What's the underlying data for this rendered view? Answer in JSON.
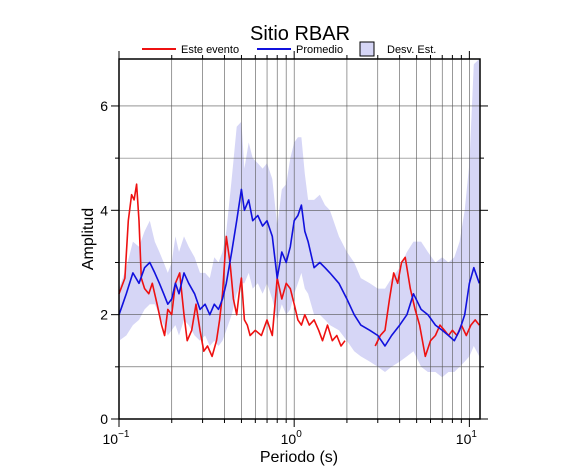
{
  "chart_data": {
    "type": "line",
    "title": "Sitio RBAR",
    "xlabel": "Periodo (s)",
    "ylabel": "Amplitud",
    "x_scale": "log",
    "xlim": [
      0.1,
      11.5
    ],
    "ylim": [
      0,
      6.9
    ],
    "grid": true,
    "legend_position": "top",
    "x_ticks": [
      {
        "value": 0.1,
        "base": "10",
        "exp": "−1"
      },
      {
        "value": 1,
        "base": "10",
        "exp": "0"
      },
      {
        "value": 10,
        "base": "10",
        "exp": "1"
      }
    ],
    "y_ticks": [
      0,
      2,
      4,
      6
    ],
    "legend": [
      {
        "label": "Este evento",
        "kind": "line",
        "color": "#ee1111"
      },
      {
        "label": "Promedio",
        "kind": "line",
        "color": "#1111dd"
      },
      {
        "label": "Desv. Est.",
        "kind": "box",
        "color": "#d6d6f6"
      }
    ],
    "series": [
      {
        "name": "Este evento",
        "color": "#ee1111",
        "x": [
          0.1,
          0.108,
          0.113,
          0.118,
          0.122,
          0.126,
          0.13,
          0.134,
          0.14,
          0.148,
          0.155,
          0.165,
          0.175,
          0.182,
          0.19,
          0.2,
          0.21,
          0.222,
          0.235,
          0.245,
          0.26,
          0.275,
          0.29,
          0.305,
          0.32,
          0.34,
          0.36,
          0.375,
          0.39,
          0.41,
          0.43,
          0.45,
          0.47,
          0.485,
          0.5,
          0.52,
          0.54,
          0.56,
          0.6,
          0.65,
          0.7,
          0.75,
          0.8,
          0.85,
          0.9,
          0.95,
          1.0,
          1.05,
          1.1,
          1.15,
          1.22,
          1.3,
          1.38,
          1.45,
          1.55,
          1.65,
          1.75,
          1.85,
          1.95
        ],
        "y": [
          2.4,
          2.7,
          3.8,
          4.3,
          4.2,
          4.5,
          3.8,
          2.7,
          2.5,
          2.4,
          2.6,
          2.2,
          1.8,
          1.6,
          2.1,
          2.0,
          2.6,
          2.8,
          2.0,
          1.5,
          1.7,
          2.2,
          1.7,
          1.3,
          1.4,
          1.2,
          1.5,
          1.9,
          2.4,
          3.5,
          3.0,
          2.3,
          2.0,
          2.4,
          2.7,
          1.9,
          1.8,
          1.6,
          1.7,
          1.6,
          1.9,
          1.6,
          2.7,
          2.3,
          2.6,
          2.5,
          2.2,
          1.9,
          1.8,
          2.0,
          1.8,
          1.9,
          1.7,
          1.5,
          1.8,
          1.5,
          1.6,
          1.4,
          1.5
        ]
      },
      {
        "name": "Este evento",
        "color": "#ee1111",
        "x": [
          2.9,
          3.1,
          3.3,
          3.5,
          3.7,
          3.9,
          4.1,
          4.3,
          4.6,
          4.9,
          5.2,
          5.6,
          6.0,
          6.4,
          6.8,
          7.2,
          7.6,
          8.0,
          8.5,
          9.0,
          9.6,
          10.2,
          10.8,
          11.4
        ],
        "y": [
          1.4,
          1.6,
          1.7,
          2.3,
          2.8,
          2.6,
          3.0,
          3.1,
          2.5,
          2.1,
          1.8,
          1.2,
          1.5,
          1.6,
          1.8,
          1.7,
          1.6,
          1.7,
          1.6,
          1.8,
          1.6,
          1.8,
          1.9,
          1.8
        ]
      },
      {
        "name": "Promedio",
        "color": "#1111dd",
        "x": [
          0.1,
          0.105,
          0.11,
          0.115,
          0.12,
          0.13,
          0.14,
          0.15,
          0.16,
          0.17,
          0.18,
          0.19,
          0.2,
          0.21,
          0.22,
          0.235,
          0.25,
          0.27,
          0.29,
          0.31,
          0.33,
          0.35,
          0.37,
          0.39,
          0.41,
          0.44,
          0.47,
          0.5,
          0.52,
          0.55,
          0.58,
          0.62,
          0.66,
          0.7,
          0.75,
          0.8,
          0.85,
          0.9,
          0.95,
          1.0,
          1.05,
          1.1,
          1.15,
          1.2,
          1.3,
          1.4,
          1.5,
          1.6,
          1.8,
          2.0,
          2.2,
          2.4,
          2.7,
          3.0,
          3.3,
          3.6,
          4.0,
          4.4,
          4.8,
          5.3,
          5.8,
          6.4,
          7.0,
          7.6,
          8.2,
          8.8,
          9.4,
          10.0,
          10.6,
          11.4
        ],
        "y": [
          2.0,
          2.2,
          2.4,
          2.6,
          2.8,
          2.6,
          2.9,
          3.0,
          2.8,
          2.6,
          2.4,
          2.2,
          2.3,
          2.6,
          2.4,
          2.8,
          2.6,
          2.4,
          2.1,
          2.2,
          2.0,
          2.2,
          2.1,
          2.3,
          2.6,
          3.2,
          3.8,
          4.4,
          4.0,
          4.2,
          3.8,
          3.9,
          3.7,
          3.8,
          3.5,
          2.7,
          3.2,
          3.0,
          3.3,
          3.8,
          3.9,
          4.1,
          3.6,
          3.4,
          2.9,
          3.0,
          2.9,
          2.8,
          2.6,
          2.3,
          2.0,
          1.8,
          1.7,
          1.6,
          1.4,
          1.6,
          1.8,
          2.0,
          2.4,
          2.1,
          2.0,
          1.8,
          1.7,
          1.6,
          1.5,
          1.7,
          2.0,
          2.6,
          2.9,
          2.6
        ]
      }
    ],
    "band": {
      "name": "Desv. Est.",
      "color": "#d6d6f6",
      "x": [
        0.1,
        0.11,
        0.12,
        0.13,
        0.14,
        0.15,
        0.16,
        0.17,
        0.18,
        0.19,
        0.2,
        0.21,
        0.22,
        0.235,
        0.25,
        0.27,
        0.29,
        0.31,
        0.33,
        0.35,
        0.37,
        0.39,
        0.41,
        0.44,
        0.47,
        0.5,
        0.52,
        0.55,
        0.58,
        0.62,
        0.66,
        0.7,
        0.75,
        0.8,
        0.85,
        0.9,
        0.95,
        1.0,
        1.05,
        1.1,
        1.15,
        1.2,
        1.3,
        1.4,
        1.5,
        1.6,
        1.8,
        2.0,
        2.2,
        2.4,
        2.7,
        3.0,
        3.3,
        3.6,
        4.0,
        4.4,
        4.8,
        5.3,
        5.8,
        6.4,
        7.0,
        7.6,
        8.2,
        8.8,
        9.4,
        10.0,
        10.6,
        11.4
      ],
      "upper": [
        2.5,
        2.9,
        3.4,
        3.3,
        3.6,
        3.8,
        3.4,
        3.2,
        3.0,
        2.8,
        3.0,
        3.5,
        3.2,
        3.5,
        3.3,
        3.1,
        2.8,
        2.8,
        2.7,
        3.1,
        3.0,
        3.2,
        3.6,
        4.6,
        5.6,
        5.7,
        4.8,
        5.3,
        5.0,
        4.9,
        4.8,
        4.9,
        4.6,
        3.7,
        4.4,
        4.5,
        5.0,
        5.3,
        5.4,
        5.4,
        4.7,
        4.2,
        4.2,
        4.3,
        4.1,
        4.0,
        3.5,
        3.2,
        3.0,
        2.7,
        2.6,
        2.5,
        2.5,
        2.7,
        2.9,
        3.2,
        3.4,
        3.4,
        3.2,
        3.0,
        3.1,
        3.0,
        3.1,
        3.4,
        4.0,
        4.9,
        6.8,
        6.9
      ],
      "lower": [
        1.5,
        1.6,
        1.8,
        1.9,
        2.1,
        2.2,
        2.2,
        2.0,
        1.8,
        1.6,
        1.7,
        1.8,
        1.6,
        1.9,
        1.8,
        1.6,
        1.5,
        1.6,
        1.4,
        1.5,
        1.4,
        1.5,
        1.7,
        2.0,
        2.4,
        2.6,
        2.6,
        2.8,
        2.5,
        2.6,
        2.4,
        2.6,
        2.3,
        1.9,
        2.2,
        2.0,
        2.1,
        2.4,
        2.6,
        2.8,
        2.5,
        2.4,
        2.0,
        2.0,
        1.9,
        1.8,
        1.7,
        1.5,
        1.3,
        1.2,
        1.1,
        1.0,
        0.9,
        1.0,
        1.1,
        1.2,
        1.3,
        1.0,
        0.9,
        0.9,
        0.8,
        0.9,
        0.9,
        1.0,
        1.1,
        1.2,
        1.4,
        1.2
      ]
    }
  }
}
